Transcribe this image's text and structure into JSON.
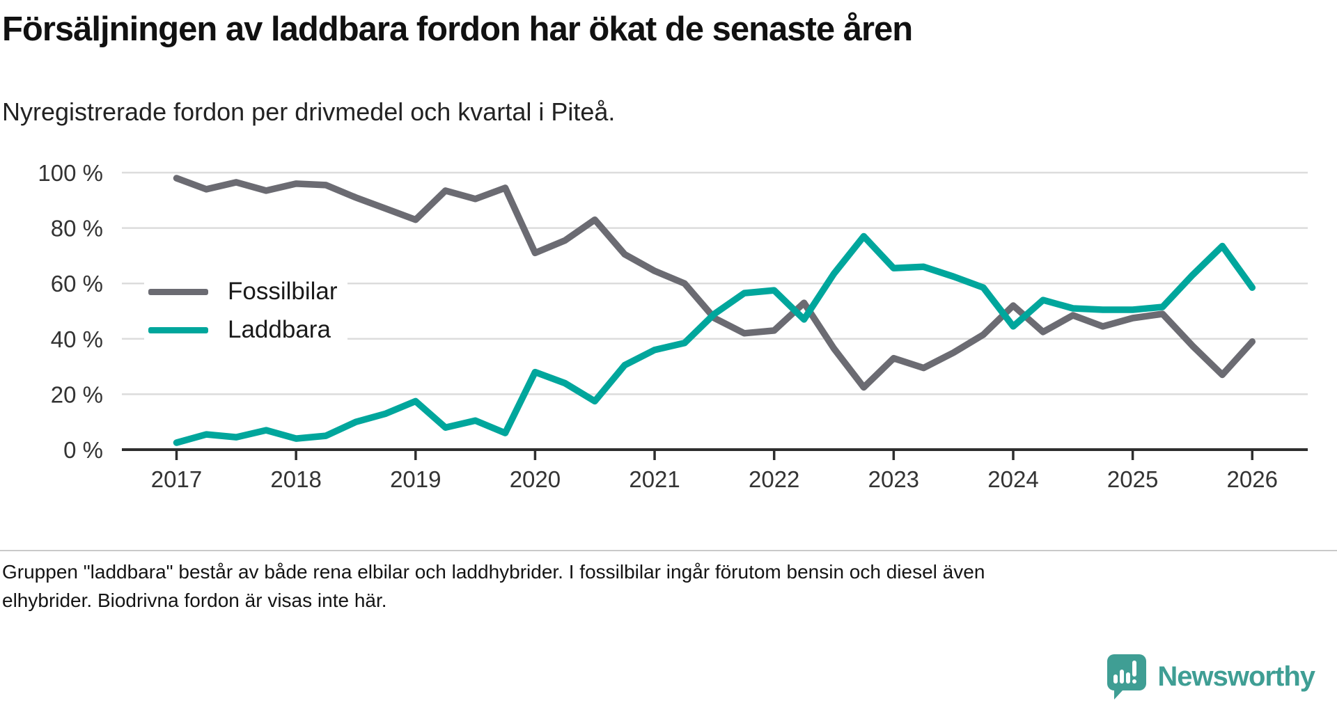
{
  "header": {
    "title": "Försäljningen av laddbara fordon har ökat de senaste åren",
    "subtitle": "Nyregistrerade fordon per drivmedel och kvartal i Piteå."
  },
  "footnote": {
    "line1": "Gruppen \"laddbara\" består av både rena elbilar och laddhybrider. I fossilbilar ingår förutom bensin och diesel även",
    "line2": "elhybrider. Biodrivna fordon är visas inte här."
  },
  "logo": {
    "text": "Newsworthy"
  },
  "colors": {
    "fossil": "#6b6b72",
    "laddbara": "#00a69c",
    "grid": "#dcdcdc",
    "axis": "#2e2e2e",
    "tick_text": "#333333",
    "logo_teal": "#3f9e94"
  },
  "chart_data": {
    "type": "line",
    "frequency": "quarterly",
    "x_period_start": "2017 Q1",
    "x_period_end": "2026 Q1",
    "x_tick_labels": [
      "2017",
      "2018",
      "2019",
      "2020",
      "2021",
      "2022",
      "2023",
      "2024",
      "2025",
      "2026"
    ],
    "y_tick_values": [
      100,
      80,
      60,
      40,
      20,
      0
    ],
    "y_tick_labels": [
      "100 %",
      "80 %",
      "60 %",
      "40 %",
      "20 %",
      "0 %"
    ],
    "ylim": [
      0,
      100
    ],
    "grid": "horizontal-only",
    "legend_position": "inside-left",
    "series": [
      {
        "name": "Fossilbilar",
        "color": "#6b6b72",
        "values": [
          98,
          94,
          96.5,
          93.5,
          96,
          95.5,
          91,
          87,
          83,
          93.5,
          90.5,
          94.5,
          71,
          75.5,
          83,
          70.5,
          64.5,
          60,
          47.5,
          42,
          43,
          53,
          36.5,
          22.5,
          33,
          29.5,
          35,
          41.5,
          52,
          42.5,
          48.5,
          44.5,
          47.5,
          49,
          37.5,
          27,
          39
        ]
      },
      {
        "name": "Laddbara",
        "color": "#00a69c",
        "values": [
          2.5,
          5.5,
          4.5,
          7,
          4,
          5,
          10,
          13,
          17.5,
          8,
          10.5,
          6,
          28,
          24,
          17.5,
          30.5,
          36,
          38.5,
          49,
          56.5,
          57.5,
          47,
          63.5,
          77,
          65.5,
          66,
          62.5,
          58.5,
          44.5,
          54,
          51,
          50.5,
          50.5,
          51.5,
          63,
          73.5,
          58.5
        ]
      }
    ]
  }
}
